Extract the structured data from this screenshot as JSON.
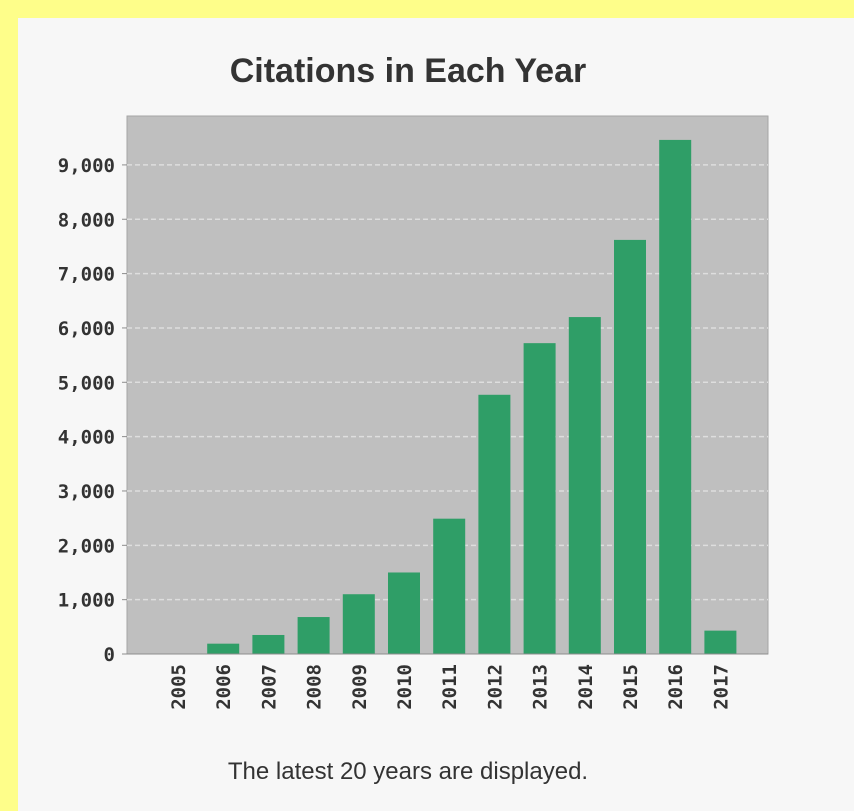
{
  "chart_data": {
    "type": "bar",
    "title": "Citations in Each Year",
    "xlabel": "",
    "ylabel": "",
    "categories": [
      "2005",
      "2006",
      "2007",
      "2008",
      "2009",
      "2010",
      "2011",
      "2012",
      "2013",
      "2014",
      "2015",
      "2016",
      "2017"
    ],
    "values": [
      0,
      190,
      350,
      680,
      1100,
      1500,
      2490,
      4770,
      5720,
      6200,
      7620,
      9460,
      430
    ],
    "ylim": [
      0,
      9900
    ],
    "yticks": [
      0,
      1000,
      2000,
      3000,
      4000,
      5000,
      6000,
      7000,
      8000,
      9000
    ],
    "ytick_labels": [
      "0",
      "1,000",
      "2,000",
      "3,000",
      "4,000",
      "5,000",
      "6,000",
      "7,000",
      "8,000",
      "9,000"
    ],
    "grid": true,
    "legend": "none",
    "colors": {
      "bar": "#2f9e67",
      "plot_background": "#bfbfbf",
      "gridline": "#dedede"
    }
  },
  "footnote": "The latest 20 years are displayed."
}
